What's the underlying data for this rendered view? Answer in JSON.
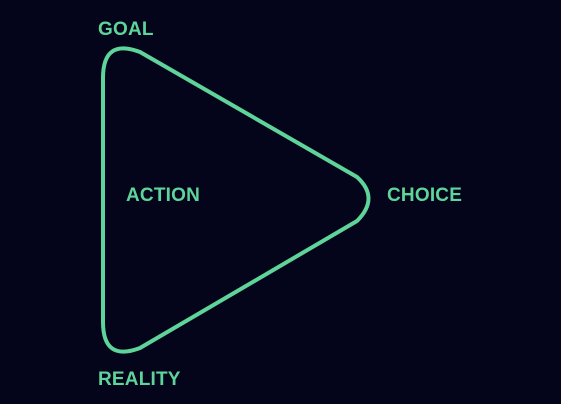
{
  "colors": {
    "background": "#04041a",
    "accent": "#5fd49a"
  },
  "labels": {
    "goal": "GOAL",
    "action": "ACTION",
    "choice": "CHOICE",
    "reality": "REALITY"
  }
}
